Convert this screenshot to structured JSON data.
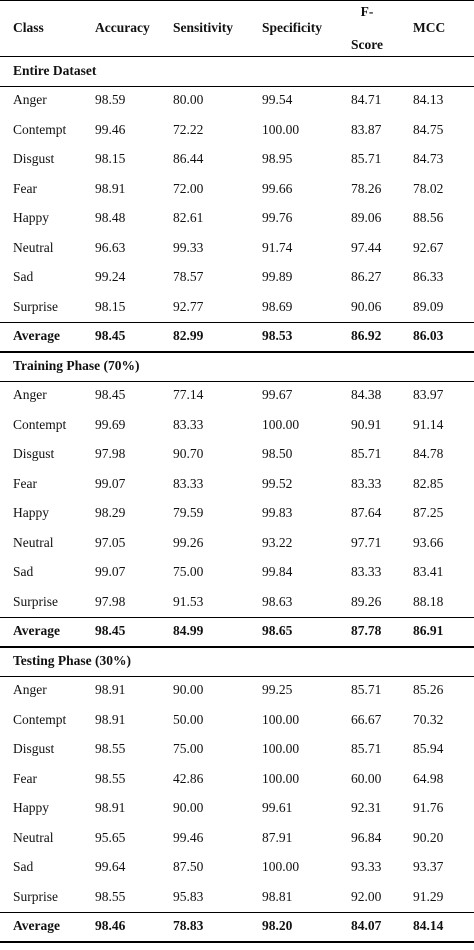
{
  "table": {
    "headers": [
      "Class",
      "Accuracy",
      "Sensitivity",
      "Specificity",
      "F-Score",
      "MCC"
    ],
    "f_score_parts": [
      "F-",
      "Score"
    ],
    "sections": [
      {
        "title": "Entire Dataset",
        "rows": [
          [
            "Anger",
            "98.59",
            "80.00",
            "99.54",
            "84.71",
            "84.13"
          ],
          [
            "Contempt",
            "99.46",
            "72.22",
            "100.00",
            "83.87",
            "84.75"
          ],
          [
            "Disgust",
            "98.15",
            "86.44",
            "98.95",
            "85.71",
            "84.73"
          ],
          [
            "Fear",
            "98.91",
            "72.00",
            "99.66",
            "78.26",
            "78.02"
          ],
          [
            "Happy",
            "98.48",
            "82.61",
            "99.76",
            "89.06",
            "88.56"
          ],
          [
            "Neutral",
            "96.63",
            "99.33",
            "91.74",
            "97.44",
            "92.67"
          ],
          [
            "Sad",
            "99.24",
            "78.57",
            "99.89",
            "86.27",
            "86.33"
          ],
          [
            "Surprise",
            "98.15",
            "92.77",
            "98.69",
            "90.06",
            "89.09"
          ]
        ],
        "average": [
          "Average",
          "98.45",
          "82.99",
          "98.53",
          "86.92",
          "86.03"
        ]
      },
      {
        "title": "Training Phase (70%)",
        "rows": [
          [
            "Anger",
            "98.45",
            "77.14",
            "99.67",
            "84.38",
            "83.97"
          ],
          [
            "Contempt",
            "99.69",
            "83.33",
            "100.00",
            "90.91",
            "91.14"
          ],
          [
            "Disgust",
            "97.98",
            "90.70",
            "98.50",
            "85.71",
            "84.78"
          ],
          [
            "Fear",
            "99.07",
            "83.33",
            "99.52",
            "83.33",
            "82.85"
          ],
          [
            "Happy",
            "98.29",
            "79.59",
            "99.83",
            "87.64",
            "87.25"
          ],
          [
            "Neutral",
            "97.05",
            "99.26",
            "93.22",
            "97.71",
            "93.66"
          ],
          [
            "Sad",
            "99.07",
            "75.00",
            "99.84",
            "83.33",
            "83.41"
          ],
          [
            "Surprise",
            "97.98",
            "91.53",
            "98.63",
            "89.26",
            "88.18"
          ]
        ],
        "average": [
          "Average",
          "98.45",
          "84.99",
          "98.65",
          "87.78",
          "86.91"
        ]
      },
      {
        "title": "Testing Phase (30%)",
        "rows": [
          [
            "Anger",
            "98.91",
            "90.00",
            "99.25",
            "85.71",
            "85.26"
          ],
          [
            "Contempt",
            "98.91",
            "50.00",
            "100.00",
            "66.67",
            "70.32"
          ],
          [
            "Disgust",
            "98.55",
            "75.00",
            "100.00",
            "85.71",
            "85.94"
          ],
          [
            "Fear",
            "98.55",
            "42.86",
            "100.00",
            "60.00",
            "64.98"
          ],
          [
            "Happy",
            "98.91",
            "90.00",
            "99.61",
            "92.31",
            "91.76"
          ],
          [
            "Neutral",
            "95.65",
            "99.46",
            "87.91",
            "96.84",
            "90.20"
          ],
          [
            "Sad",
            "99.64",
            "87.50",
            "100.00",
            "93.33",
            "93.37"
          ],
          [
            "Surprise",
            "98.55",
            "95.83",
            "98.81",
            "92.00",
            "91.29"
          ]
        ],
        "average": [
          "Average",
          "98.46",
          "78.83",
          "98.20",
          "84.07",
          "84.14"
        ]
      }
    ]
  }
}
